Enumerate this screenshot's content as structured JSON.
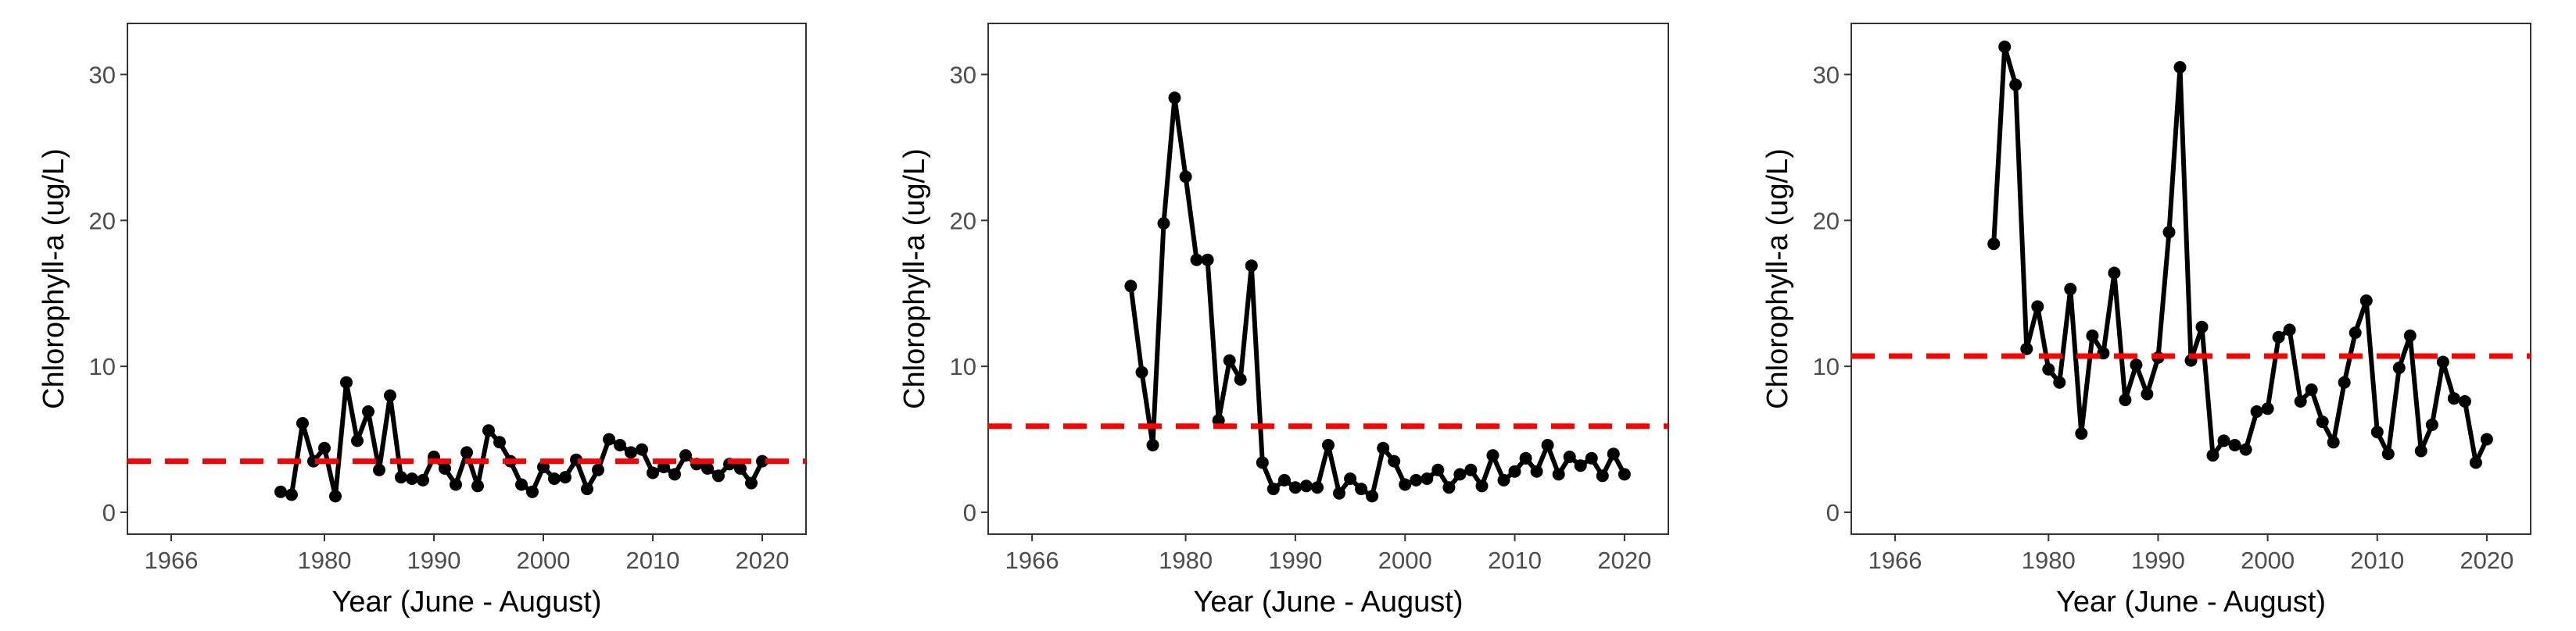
{
  "chart_data": [
    {
      "type": "line",
      "xlabel": "Year (June - August)",
      "ylabel": "Chlorophyll-a (ug/L)",
      "xlim": [
        1962,
        2024
      ],
      "ylim": [
        -1.5,
        33.5
      ],
      "xticks": [
        1966,
        1980,
        1990,
        2000,
        2010,
        2020
      ],
      "yticks": [
        0,
        10,
        20,
        30
      ],
      "grid": false,
      "colors": {
        "line": "#000000",
        "reference": "#ff0000"
      },
      "reference_line": {
        "y": 3.5,
        "style": "dashed"
      },
      "series": [
        {
          "x": [
            1976,
            1977,
            1978,
            1979,
            1980,
            1981,
            1982,
            1983,
            1984,
            1985,
            1986,
            1987,
            1988,
            1989,
            1990,
            1991,
            1992,
            1993,
            1994,
            1995,
            1996,
            1997,
            1998,
            1999,
            2000,
            2001,
            2002,
            2003,
            2004,
            2005,
            2006,
            2007,
            2008,
            2009,
            2010,
            2011,
            2012,
            2013,
            2014,
            2015,
            2016,
            2017,
            2018,
            2019,
            2020
          ],
          "y": [
            1.4,
            1.2,
            6.1,
            3.5,
            4.4,
            1.1,
            8.9,
            4.9,
            6.9,
            2.9,
            8.0,
            2.4,
            2.3,
            2.2,
            3.8,
            3.0,
            1.9,
            4.1,
            1.8,
            5.6,
            4.8,
            3.5,
            1.9,
            1.4,
            3.1,
            2.3,
            2.4,
            3.6,
            1.6,
            2.9,
            5.0,
            4.6,
            4.1,
            4.3,
            2.7,
            3.1,
            2.6,
            3.9,
            3.3,
            3.0,
            2.5,
            3.3,
            3.0,
            2.0,
            3.5
          ]
        }
      ]
    },
    {
      "type": "line",
      "xlabel": "Year (June - August)",
      "ylabel": "Chlorophyll-a (ug/L)",
      "xlim": [
        1962,
        2024
      ],
      "ylim": [
        -1.5,
        33.5
      ],
      "xticks": [
        1966,
        1980,
        1990,
        2000,
        2010,
        2020
      ],
      "yticks": [
        0,
        10,
        20,
        30
      ],
      "grid": false,
      "colors": {
        "line": "#000000",
        "reference": "#ff0000"
      },
      "reference_line": {
        "y": 5.9,
        "style": "dashed"
      },
      "series": [
        {
          "x": [
            1975,
            1976,
            1977,
            1978,
            1979,
            1980,
            1981,
            1982,
            1983,
            1984,
            1985,
            1986,
            1987,
            1988,
            1989,
            1990,
            1991,
            1992,
            1993,
            1994,
            1995,
            1996,
            1997,
            1998,
            1999,
            2000,
            2001,
            2002,
            2003,
            2004,
            2005,
            2006,
            2007,
            2008,
            2009,
            2010,
            2011,
            2012,
            2013,
            2014,
            2015,
            2016,
            2017,
            2018,
            2019,
            2020
          ],
          "y": [
            15.5,
            9.6,
            4.6,
            19.8,
            28.4,
            23.0,
            17.3,
            17.3,
            6.3,
            10.4,
            9.1,
            16.9,
            3.4,
            1.6,
            2.2,
            1.7,
            1.8,
            1.7,
            4.6,
            1.3,
            2.3,
            1.6,
            1.1,
            4.4,
            3.5,
            1.9,
            2.2,
            2.3,
            2.9,
            1.7,
            2.6,
            2.9,
            1.8,
            3.9,
            2.2,
            2.8,
            3.7,
            2.8,
            4.6,
            2.6,
            3.8,
            3.2,
            3.7,
            2.5,
            4.0,
            2.6
          ]
        }
      ]
    },
    {
      "type": "line",
      "xlabel": "Year (June - August)",
      "ylabel": "Chlorophyll-a (ug/L)",
      "xlim": [
        1962,
        2024
      ],
      "ylim": [
        -1.5,
        33.5
      ],
      "xticks": [
        1966,
        1980,
        1990,
        2000,
        2010,
        2020
      ],
      "yticks": [
        0,
        10,
        20,
        30
      ],
      "grid": false,
      "colors": {
        "line": "#000000",
        "reference": "#ff0000"
      },
      "reference_line": {
        "y": 10.7,
        "style": "dashed"
      },
      "series": [
        {
          "x": [
            1975,
            1976,
            1977,
            1978,
            1979,
            1980,
            1981,
            1982,
            1983,
            1984,
            1985,
            1986,
            1987,
            1988,
            1989,
            1990,
            1991,
            1992,
            1993,
            1994,
            1995,
            1996,
            1997,
            1998,
            1999,
            2000,
            2001,
            2002,
            2003,
            2004,
            2005,
            2006,
            2007,
            2008,
            2009,
            2010,
            2011,
            2012,
            2013,
            2014,
            2015,
            2016,
            2017,
            2018,
            2019,
            2020
          ],
          "y": [
            18.4,
            31.9,
            29.3,
            11.2,
            14.1,
            9.8,
            8.9,
            15.3,
            5.4,
            12.1,
            10.9,
            16.4,
            7.7,
            10.1,
            8.1,
            10.6,
            19.2,
            30.5,
            10.4,
            12.7,
            3.9,
            4.9,
            4.6,
            4.3,
            6.9,
            7.1,
            12.0,
            12.5,
            7.6,
            8.4,
            6.2,
            4.8,
            8.9,
            12.3,
            14.5,
            5.5,
            4.0,
            9.9,
            12.1,
            4.2,
            6.0,
            10.3,
            7.8,
            7.6,
            3.4,
            5.0
          ]
        }
      ]
    }
  ]
}
